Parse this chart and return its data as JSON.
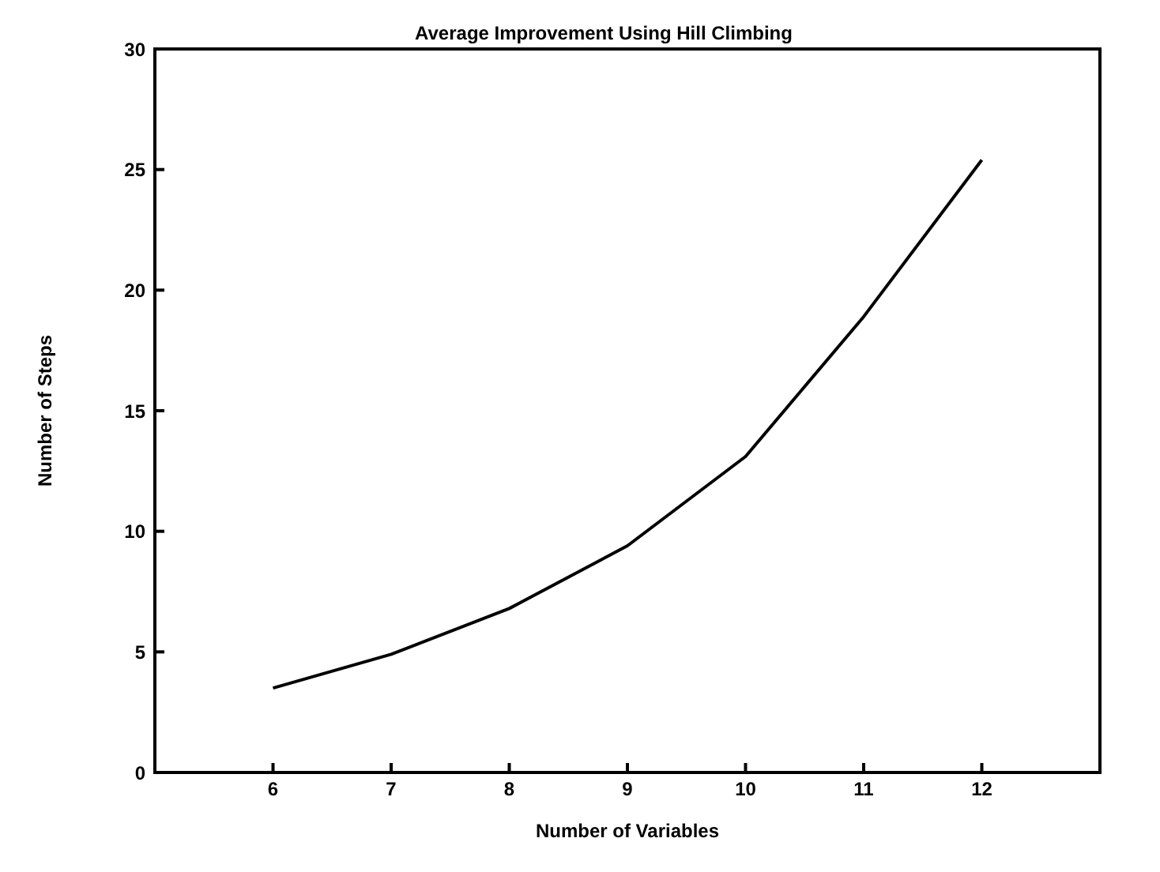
{
  "chart_data": {
    "type": "line",
    "title": "Average Improvement Using Hill Climbing",
    "xlabel": "Number of Variables",
    "ylabel": "Number of Steps",
    "x": [
      6,
      7,
      8,
      9,
      10,
      11,
      12
    ],
    "series": [
      {
        "color": "#000000",
        "values": [
          3.5,
          4.9,
          6.8,
          9.4,
          13.1,
          18.9,
          25.4
        ]
      }
    ],
    "xlim": [
      5,
      13
    ],
    "xticks": [
      6,
      7,
      8,
      9,
      10,
      11,
      12
    ],
    "ylim": [
      0,
      30
    ],
    "yticks": [
      0,
      5,
      10,
      15,
      20,
      25,
      30
    ],
    "marker": "none",
    "line_style": "solid"
  }
}
